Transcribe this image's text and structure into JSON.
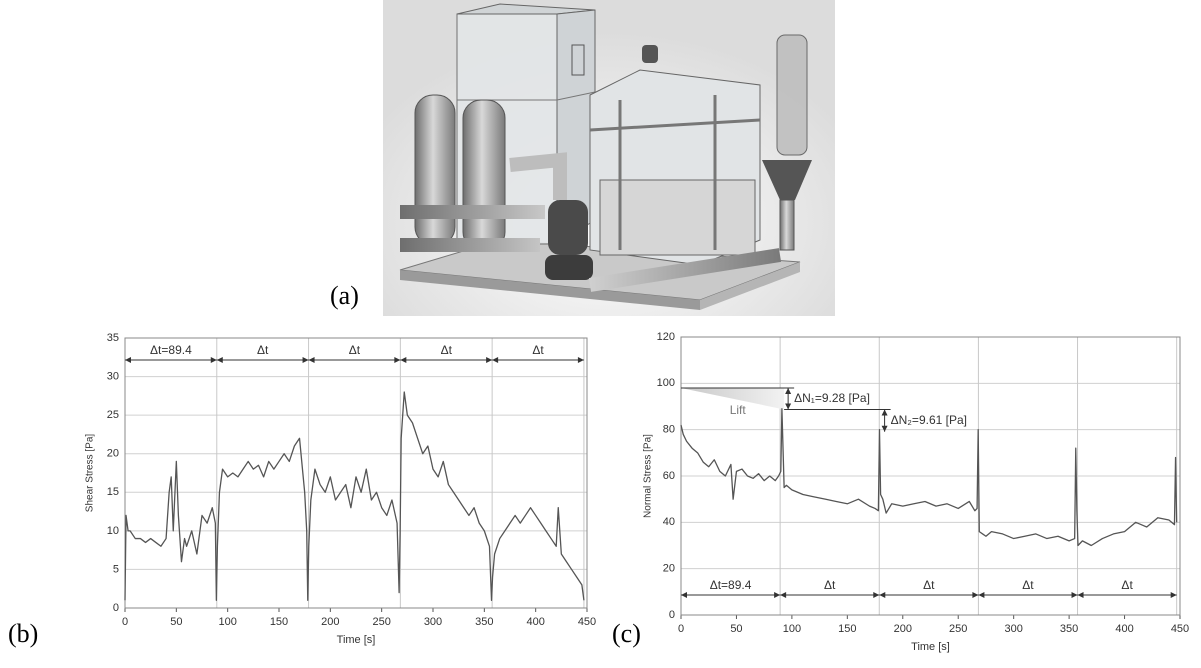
{
  "figure": {
    "panel_labels": [
      "(a)",
      "(b)",
      "(c)"
    ]
  },
  "chart_data": [
    {
      "type": "line",
      "x_label": "Time [s]",
      "y_label": "Shear Stress [Pa]",
      "color": "#555555",
      "grid": true,
      "xlim": [
        0,
        450
      ],
      "xticks": [
        0,
        50,
        100,
        150,
        200,
        250,
        300,
        350,
        400,
        450
      ],
      "ylim": [
        0,
        35
      ],
      "yticks": [
        0,
        5,
        10,
        15,
        20,
        25,
        30,
        35
      ],
      "x": [
        0,
        1,
        3,
        5,
        10,
        15,
        20,
        25,
        30,
        35,
        40,
        43,
        45,
        47,
        50,
        52,
        55,
        58,
        60,
        65,
        70,
        75,
        80,
        85,
        88,
        89,
        90,
        92,
        95,
        100,
        105,
        110,
        115,
        120,
        125,
        130,
        135,
        140,
        145,
        150,
        155,
        160,
        165,
        170,
        175,
        177,
        178,
        179,
        181,
        185,
        190,
        195,
        200,
        205,
        210,
        215,
        220,
        225,
        230,
        235,
        240,
        245,
        250,
        255,
        260,
        265,
        267,
        268,
        269,
        272,
        275,
        280,
        285,
        290,
        295,
        300,
        305,
        310,
        315,
        320,
        325,
        330,
        335,
        340,
        345,
        350,
        355,
        357,
        358,
        360,
        365,
        370,
        375,
        380,
        385,
        390,
        395,
        400,
        405,
        410,
        415,
        420,
        422,
        425,
        430,
        435,
        440,
        445,
        447
      ],
      "values": [
        1,
        12,
        10,
        10,
        9,
        9,
        8.5,
        9,
        8.5,
        8,
        9,
        15,
        17,
        10,
        19,
        12,
        6,
        9,
        8,
        10,
        7,
        12,
        11,
        13,
        11,
        1,
        8,
        15,
        18,
        17,
        17.5,
        17,
        18,
        19,
        18,
        18.5,
        17,
        19,
        18,
        19,
        20,
        19,
        21,
        22,
        15,
        10,
        1,
        8,
        14,
        18,
        16,
        15,
        17,
        14,
        15,
        16,
        13,
        17,
        15,
        18,
        14,
        15,
        13,
        12,
        14,
        11,
        2,
        10,
        22,
        28,
        25,
        24,
        22,
        20,
        21,
        18,
        17,
        19,
        16,
        15,
        14,
        13,
        12,
        13,
        11,
        10,
        8,
        1,
        4,
        7,
        9,
        10,
        11,
        12,
        11,
        12,
        13,
        12,
        11,
        10,
        9,
        8,
        13,
        7,
        6,
        5,
        4,
        3,
        1
      ],
      "interval_edges": [
        0,
        89.4,
        178.8,
        268.2,
        357.6,
        447
      ],
      "interval_labels": [
        "Δt=89.4",
        "Δt",
        "Δt",
        "Δt",
        "Δt"
      ]
    },
    {
      "type": "line",
      "x_label": "Time [s]",
      "y_label": "Normal Stress [Pa]",
      "color": "#555555",
      "grid": true,
      "xlim": [
        0,
        450
      ],
      "xticks": [
        0,
        50,
        100,
        150,
        200,
        250,
        300,
        350,
        400,
        450
      ],
      "ylim": [
        0,
        120
      ],
      "yticks": [
        0,
        20,
        40,
        60,
        80,
        100,
        120
      ],
      "x": [
        0,
        2,
        5,
        10,
        15,
        20,
        25,
        30,
        35,
        40,
        45,
        47,
        50,
        55,
        60,
        65,
        70,
        75,
        80,
        85,
        88,
        90,
        91,
        93,
        95,
        100,
        110,
        120,
        130,
        140,
        150,
        160,
        170,
        175,
        178,
        179,
        180,
        182,
        185,
        190,
        200,
        210,
        220,
        230,
        240,
        250,
        260,
        265,
        267,
        268,
        269,
        272,
        275,
        280,
        290,
        300,
        310,
        320,
        330,
        340,
        350,
        355,
        356,
        357,
        358,
        362,
        370,
        380,
        390,
        400,
        410,
        420,
        430,
        440,
        445,
        446,
        447
      ],
      "values": [
        82,
        78,
        75,
        72,
        70,
        66,
        64,
        67,
        62,
        60,
        65,
        50,
        62,
        63,
        60,
        59,
        61,
        58,
        60,
        58,
        60,
        62,
        89,
        55,
        56,
        54,
        52,
        51,
        50,
        49,
        48,
        50,
        47,
        46,
        45,
        80,
        52,
        50,
        44,
        48,
        47,
        48,
        49,
        47,
        48,
        46,
        49,
        45,
        46,
        80,
        36,
        35,
        34,
        36,
        35,
        33,
        34,
        35,
        33,
        34,
        32,
        33,
        72,
        45,
        30,
        32,
        30,
        33,
        35,
        36,
        40,
        38,
        42,
        41,
        39,
        68,
        40
      ],
      "interval_edges": [
        0,
        89.4,
        178.8,
        268.2,
        357.6,
        447
      ],
      "interval_labels": [
        "Δt=89.4",
        "Δt",
        "Δt",
        "Δt",
        "Δt"
      ],
      "lift_label": "Lift",
      "delta_annotations": [
        {
          "label": "ΔN₁=9.28 [Pa]",
          "x": 93,
          "top": 98,
          "bottom": 88.72
        },
        {
          "label": "ΔN₂=9.61 [Pa]",
          "x": 180,
          "top": 88.72,
          "bottom": 79.11
        }
      ]
    }
  ]
}
